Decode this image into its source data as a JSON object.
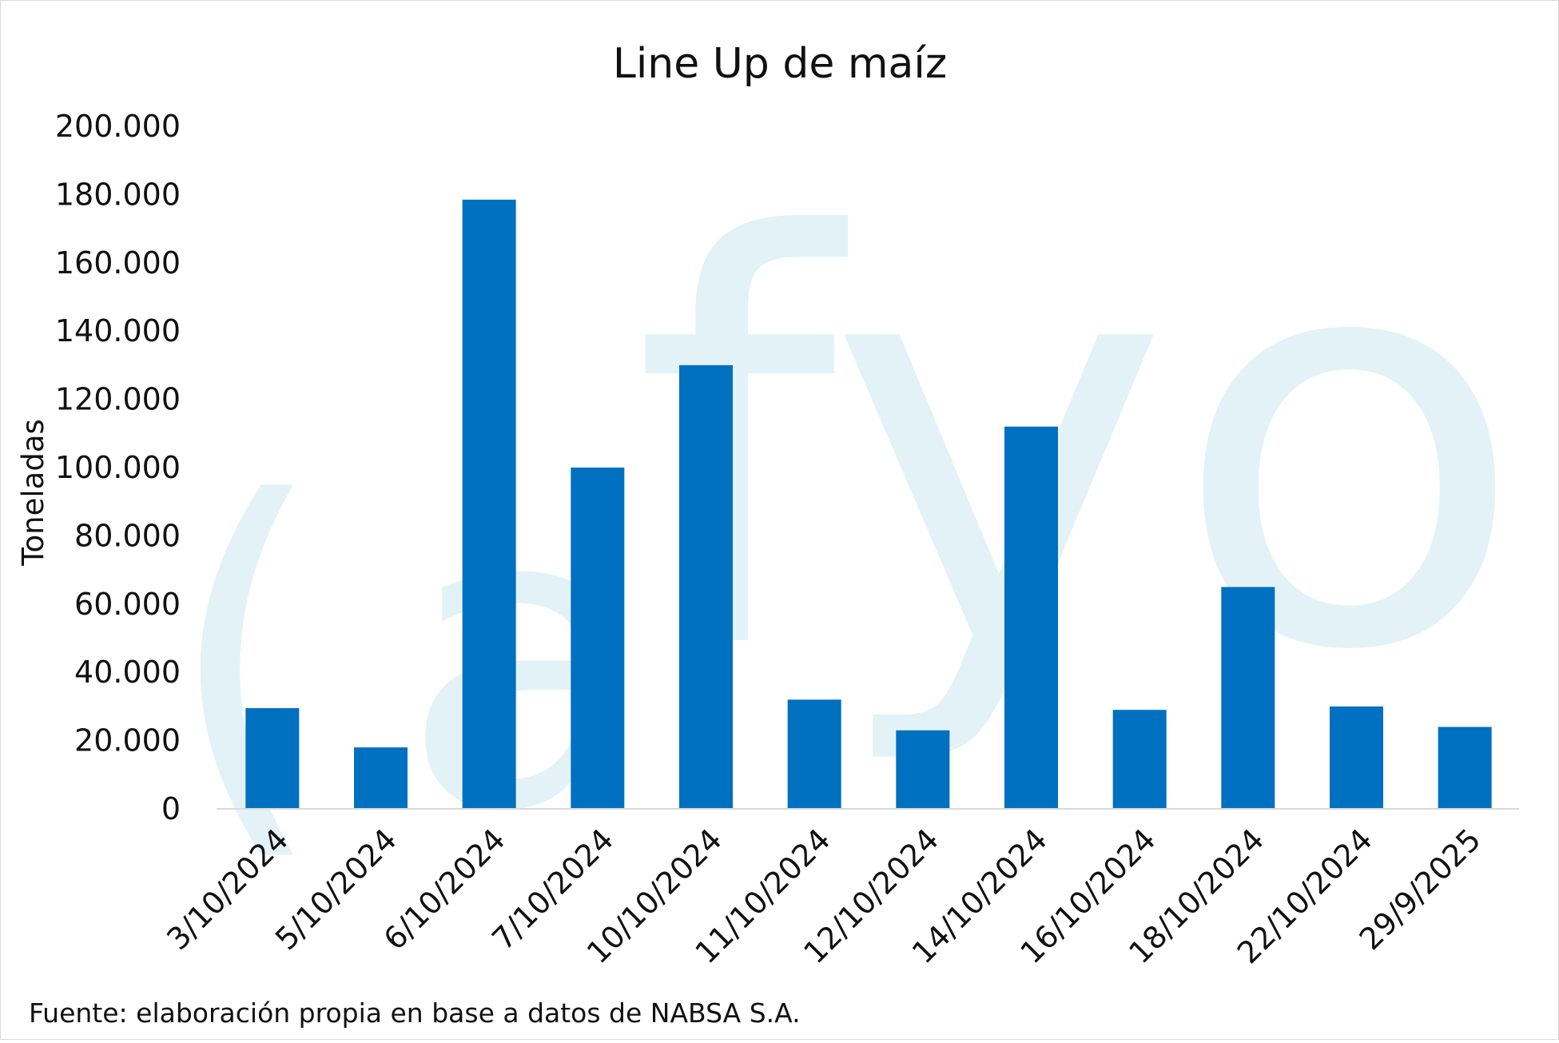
{
  "chart_data": {
    "type": "bar",
    "title": "Line Up de maíz",
    "ylabel": "Toneladas",
    "xlabel": "",
    "ylim": [
      0,
      200000
    ],
    "yticks": [
      0,
      20000,
      40000,
      60000,
      80000,
      100000,
      120000,
      140000,
      160000,
      180000,
      200000
    ],
    "ytick_labels": [
      "0",
      "20.000",
      "40.000",
      "60.000",
      "80.000",
      "100.000",
      "120.000",
      "140.000",
      "160.000",
      "180.000",
      "200.000"
    ],
    "categories": [
      "3/10/2024",
      "5/10/2024",
      "6/10/2024",
      "7/10/2024",
      "10/10/2024",
      "11/10/2024",
      "12/10/2024",
      "14/10/2024",
      "16/10/2024",
      "18/10/2024",
      "22/10/2024",
      "29/9/2025"
    ],
    "values": [
      29500,
      18000,
      178500,
      100000,
      130000,
      32000,
      23000,
      112000,
      29000,
      65000,
      30000,
      24000
    ],
    "grid": false,
    "bar_color": "#0070c0",
    "source": "Fuente: elaboración propia en base a datos de NABSA S.A.",
    "watermark_text": "(afyo",
    "watermark_color": "#e3f2f6"
  }
}
